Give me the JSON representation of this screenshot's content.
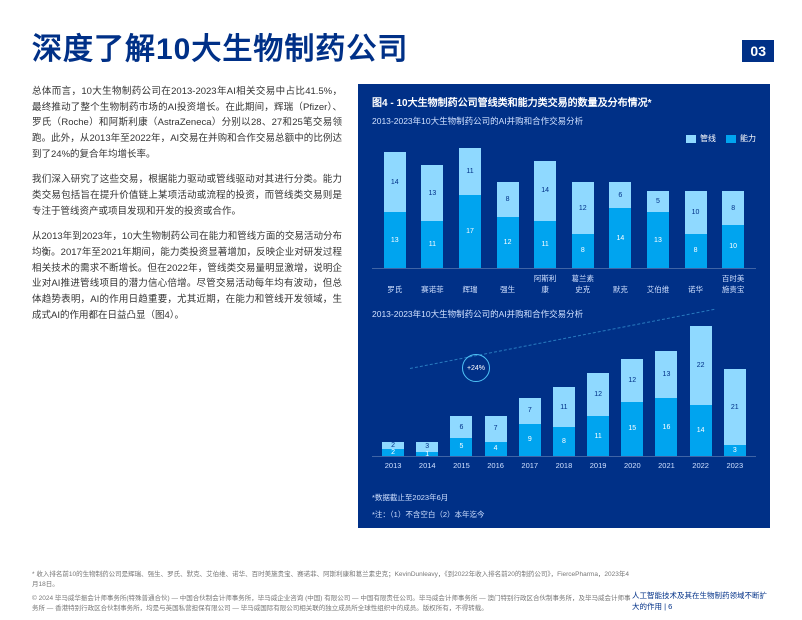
{
  "title": "深度了解10大生物制药公司",
  "section_number": "03",
  "paragraphs": [
    "总体而言，10大生物制药公司在2013-2023年AI相关交易中占比41.5%，最终推动了整个生物制药市场的AI投资增长。在此期间，辉瑞（Pfizer）、罗氏（Roche）和阿斯利康（AstraZeneca）分别以28、27和25笔交易领跑。此外，从2013年至2022年，AI交易在并购和合作交易总额中的比例达到了24%的复合年均增长率。",
    "我们深入研究了这些交易，根据能力驱动或管线驱动对其进行分类。能力类交易包括旨在提升价值链上某项活动或流程的投资，而管线类交易则是专注于管线资产或项目发现和开发的投资或合作。",
    "从2013年到2023年，10大生物制药公司在能力和管线方面的交易活动分布均衡。2017年至2021年期间，能力类投资显著增加，反映企业对研发过程相关技术的需求不断增长。但在2022年，管线类交易量明显激增，说明企业对AI推进管线项目的潜力信心倍增。尽管交易活动每年均有波动，但总体趋势表明，AI的作用日趋重要，尤其近期，在能力和管线开发领域，生成式AI的作用都在日益凸显（图4）。"
  ],
  "chart": {
    "title": "图4 - 10大生物制药公司管线类和能力类交易的数量及分布情况*",
    "sub1": "2013-2023年10大生物制药公司的AI并购和合作交易分析",
    "sub2": "2013-2023年10大生物制药公司的AI并购和合作交易分析",
    "legend": [
      {
        "label": "管线",
        "color": "#8fd9ff"
      },
      {
        "label": "能力",
        "color": "#00a4ef"
      }
    ],
    "colors": {
      "pipeline": "#8fd9ff",
      "capability": "#00a4ef",
      "bg": "#003087"
    },
    "top": {
      "categories": [
        "罗氏",
        "赛诺菲",
        "辉瑞",
        "强生",
        "阿斯利康",
        "葛兰素史克",
        "默克",
        "艾伯维",
        "诺华",
        "百时美施贵宝"
      ],
      "pipeline": [
        14,
        13,
        11,
        8,
        14,
        12,
        6,
        5,
        10,
        8
      ],
      "capability": [
        13,
        11,
        17,
        12,
        11,
        8,
        14,
        13,
        8,
        10
      ],
      "scale_max": 28
    },
    "growth": "+24%",
    "bottom": {
      "categories": [
        "2013",
        "2014",
        "2015",
        "2016",
        "2017",
        "2018",
        "2019",
        "2020",
        "2021",
        "2022",
        "2023"
      ],
      "pipeline": [
        2,
        3,
        6,
        7,
        7,
        11,
        12,
        12,
        13,
        22,
        21
      ],
      "capability": [
        2,
        1,
        5,
        4,
        9,
        8,
        11,
        15,
        16,
        14,
        3
      ],
      "scale_max": 36
    },
    "note1": "*数据截止至2023年6月",
    "note2": "*注：（1）不含空白（2）本年迄今"
  },
  "footnotes": {
    "source": "* 收入排名前10的生物制药公司是辉瑞、强生、罗氏、默克、艾伯维、诺华、百时美施贵宝、赛诺菲、阿斯利康和葛兰素史克；KevinDunleavy，《到2022年收入排名前20的制药公司》，FiercePharma，2023年4月18日。",
    "copyright": "© 2024 毕马威华振会计师事务所(特殊普通合伙) — 中国合伙制会计师事务所，毕马威企业咨询 (中国) 有限公司 — 中国有限责任公司。毕马威会计师事务所 — 澳门特别行政区合伙制事务所，及毕马威会计师事务所 — 香港特别行政区合伙制事务所，均是与英国私营担保有限公司 — 毕马威国际有限公司相关联的独立成员所全球性组织中的成员。版权所有，不得转载。",
    "doc_title": "人工智能技术及其在生物制药领域不断扩大的作用",
    "page": "6"
  }
}
